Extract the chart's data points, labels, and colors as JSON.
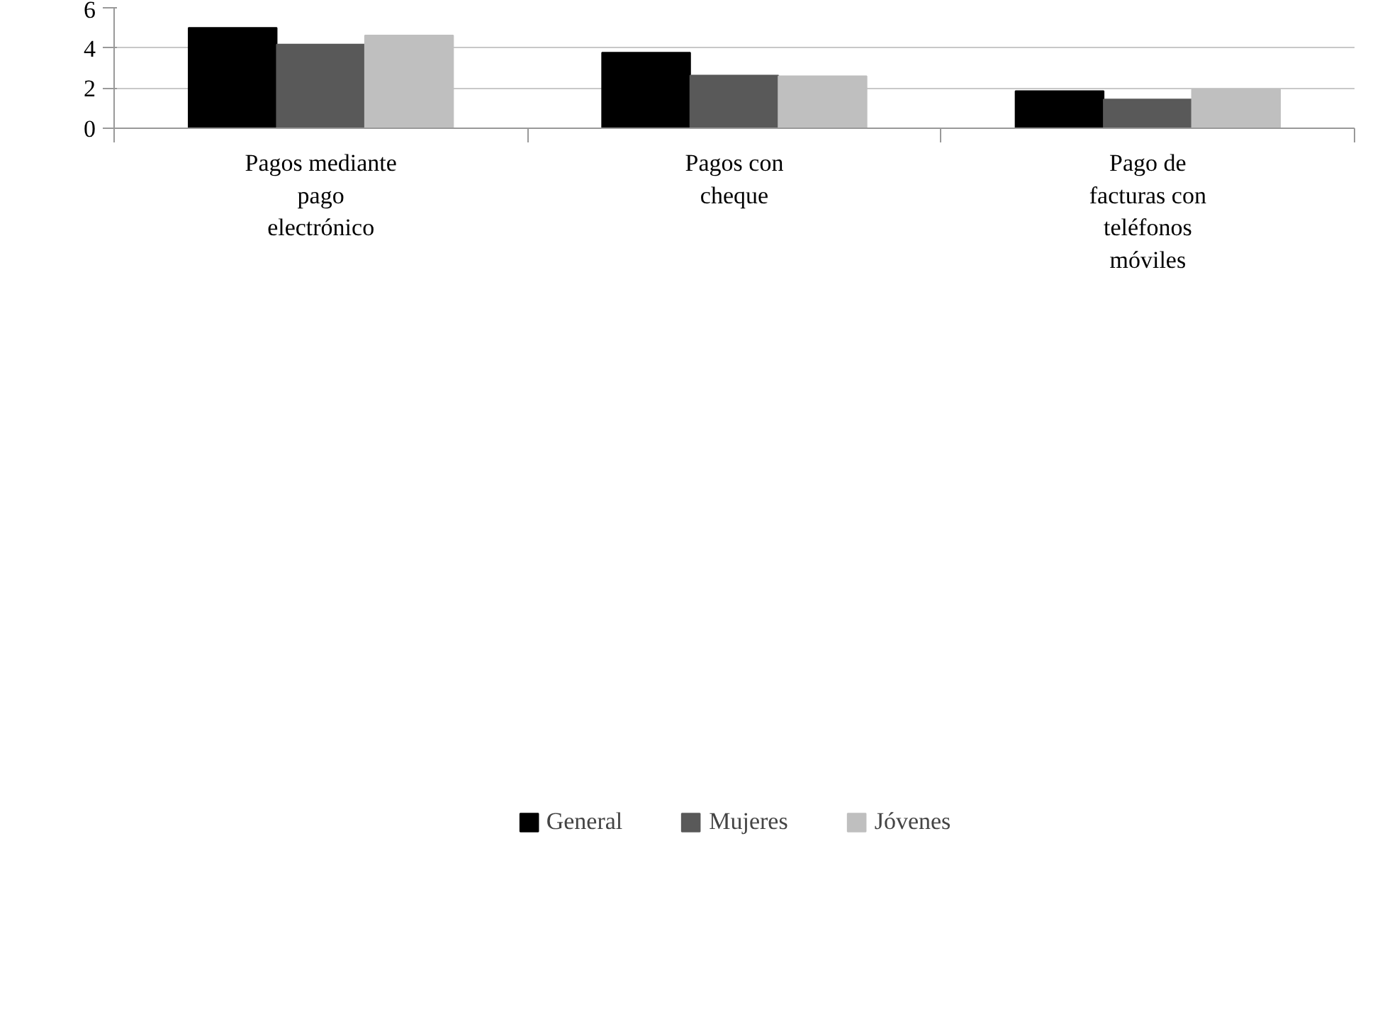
{
  "chart_data": {
    "type": "bar",
    "categories": [
      "Pagos mediante pago electrónico",
      "Pagos con cheque",
      "Pago de facturas con teléfonos móviles"
    ],
    "series": [
      {
        "name": "General",
        "color": "#000000",
        "values": [
          5.0,
          3.77,
          1.85
        ]
      },
      {
        "name": "Mujeres",
        "color": "#595959",
        "values": [
          4.17,
          2.63,
          1.44
        ]
      },
      {
        "name": "Jóvenes",
        "color": "#bfbfbf",
        "values": [
          4.62,
          2.59,
          1.93
        ]
      }
    ],
    "ylim": [
      0,
      6
    ],
    "yticks": [
      0,
      2,
      4,
      6
    ],
    "grid": "y",
    "legend": "bottom"
  }
}
